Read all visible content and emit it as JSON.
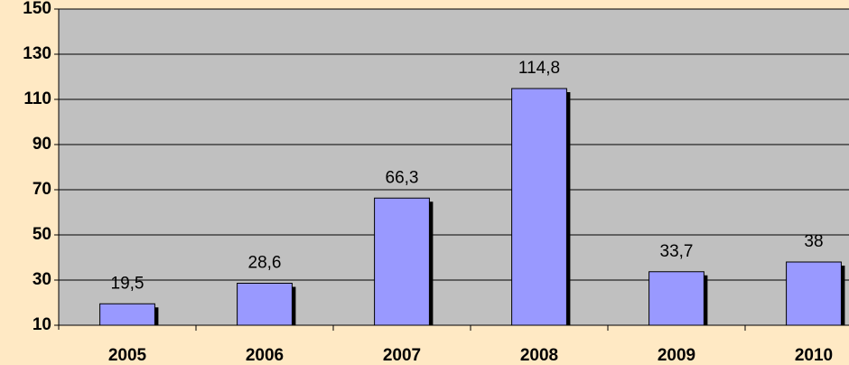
{
  "chart_data": {
    "type": "bar",
    "categories": [
      "2005",
      "2006",
      "2007",
      "2008",
      "2009",
      "2010"
    ],
    "values": [
      19.5,
      28.6,
      66.3,
      114.8,
      33.7,
      38
    ],
    "value_labels": [
      "19,5",
      "28,6",
      "66,3",
      "114,8",
      "33,7",
      "38"
    ],
    "color": "#9999FF",
    "ylim": [
      10,
      150
    ],
    "yticks": [
      10,
      30,
      50,
      70,
      90,
      110,
      130,
      150
    ],
    "grid": true
  }
}
